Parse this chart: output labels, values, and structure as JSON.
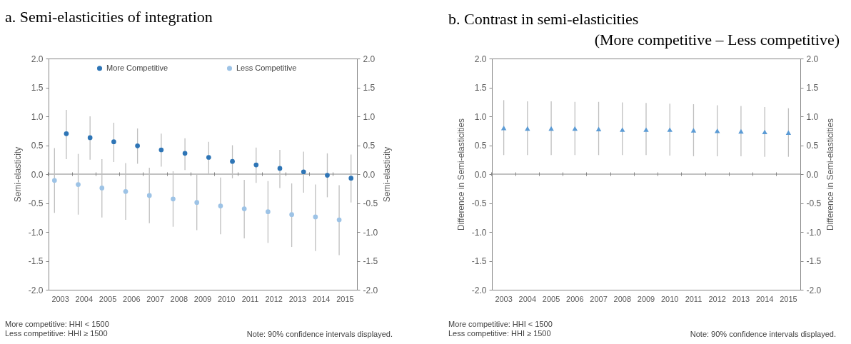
{
  "chart_data": [
    {
      "type": "scatter",
      "title": "a. Semi-elasticities of integration",
      "ylabel": "Semi-elasticity",
      "y2label": "Semi-elasticity",
      "categories": [
        "2003",
        "2004",
        "2005",
        "2006",
        "2007",
        "2008",
        "2009",
        "2010",
        "2011",
        "2012",
        "2013",
        "2014",
        "2015"
      ],
      "series": [
        {
          "name": "More Competitive",
          "color": "#2e75b6",
          "values": [
            0.7,
            0.63,
            0.56,
            0.49,
            0.42,
            0.36,
            0.29,
            0.22,
            0.16,
            0.1,
            0.04,
            -0.02,
            -0.07
          ],
          "errors": [
            [
              0.26,
              1.11
            ],
            [
              0.25,
              1.0
            ],
            [
              0.21,
              0.89
            ],
            [
              0.18,
              0.79
            ],
            [
              0.13,
              0.7
            ],
            [
              0.07,
              0.62
            ],
            [
              0.01,
              0.56
            ],
            [
              -0.07,
              0.5
            ],
            [
              -0.15,
              0.46
            ],
            [
              -0.24,
              0.42
            ],
            [
              -0.32,
              0.39
            ],
            [
              -0.4,
              0.36
            ],
            [
              -0.49,
              0.34
            ]
          ]
        },
        {
          "name": "Less Competitive",
          "color": "#9dc3e6",
          "values": [
            -0.11,
            -0.18,
            -0.24,
            -0.3,
            -0.37,
            -0.43,
            -0.49,
            -0.55,
            -0.6,
            -0.65,
            -0.7,
            -0.74,
            -0.79
          ],
          "errors": [
            [
              -0.67,
              0.45
            ],
            [
              -0.7,
              0.35
            ],
            [
              -0.75,
              0.26
            ],
            [
              -0.79,
              0.19
            ],
            [
              -0.85,
              0.11
            ],
            [
              -0.91,
              0.05
            ],
            [
              -0.97,
              0.0
            ],
            [
              -1.04,
              -0.06
            ],
            [
              -1.11,
              -0.1
            ],
            [
              -1.19,
              -0.12
            ],
            [
              -1.26,
              -0.16
            ],
            [
              -1.33,
              -0.18
            ],
            [
              -1.4,
              -0.19
            ]
          ]
        }
      ],
      "ylim": [
        -2,
        2
      ],
      "yticks": [
        {
          "value": -2,
          "label": "-2.0"
        },
        {
          "value": -1.5,
          "label": "-1.5"
        },
        {
          "value": -1,
          "label": "-1.0"
        },
        {
          "value": -0.5,
          "label": "-0.5"
        },
        {
          "value": 0,
          "label": "0.0"
        },
        {
          "value": 0.5,
          "label": "0.5"
        },
        {
          "value": 1,
          "label": "1.0"
        },
        {
          "value": 1.5,
          "label": "1.5"
        },
        {
          "value": 2,
          "label": "2.0"
        }
      ],
      "y2lim": [
        -2,
        2
      ],
      "y2ticks": [
        {
          "value": -2,
          "label": "-2.0"
        },
        {
          "value": -1.5,
          "label": "-1.5"
        },
        {
          "value": -1,
          "label": "-1.0"
        },
        {
          "value": -0.5,
          "label": "-0.5"
        },
        {
          "value": 0,
          "label": "0.0"
        },
        {
          "value": 0.5,
          "label": "0.5"
        },
        {
          "value": 1,
          "label": "1.0"
        },
        {
          "value": 1.5,
          "label": "1.5"
        },
        {
          "value": 2,
          "label": "2.0"
        }
      ],
      "ref_lines": [
        {
          "axis": "y",
          "value": 0,
          "color": "#868686"
        }
      ],
      "marker": "circle",
      "legend": "top",
      "annotations": [
        "More competitive: HHI < 1500",
        "Less competitive: HHI ≥ 1500",
        "Note: 90% confidence intervals displayed."
      ]
    },
    {
      "type": "scatter",
      "title": "b. Contrast in semi-elasticities",
      "subtitle": "(More competitive – Less competitive)",
      "ylabel": "Difference in Semi-elasticities",
      "y2label": "Difference in Semi-elasticities",
      "categories": [
        "2003",
        "2004",
        "2005",
        "2006",
        "2007",
        "2008",
        "2009",
        "2010",
        "2011",
        "2012",
        "2013",
        "2014",
        "2015"
      ],
      "series": [
        {
          "color": "#5b9bd5",
          "values": [
            0.8,
            0.79,
            0.79,
            0.79,
            0.78,
            0.77,
            0.77,
            0.77,
            0.76,
            0.75,
            0.74,
            0.73,
            0.72
          ],
          "errors": [
            [
              0.33,
              1.28
            ],
            [
              0.33,
              1.26
            ],
            [
              0.33,
              1.26
            ],
            [
              0.33,
              1.25
            ],
            [
              0.33,
              1.25
            ],
            [
              0.33,
              1.24
            ],
            [
              0.33,
              1.23
            ],
            [
              0.32,
              1.22
            ],
            [
              0.31,
              1.21
            ],
            [
              0.31,
              1.19
            ],
            [
              0.31,
              1.18
            ],
            [
              0.3,
              1.16
            ],
            [
              0.3,
              1.14
            ]
          ]
        }
      ],
      "ylim": [
        -2,
        2
      ],
      "yticks": [
        {
          "value": -2,
          "label": "-2.0"
        },
        {
          "value": -1.5,
          "label": "-1.5"
        },
        {
          "value": -1,
          "label": "-1.0"
        },
        {
          "value": -0.5,
          "label": "-0.5"
        },
        {
          "value": 0,
          "label": "0.0"
        },
        {
          "value": 0.5,
          "label": "0.5"
        },
        {
          "value": 1,
          "label": "1.0"
        },
        {
          "value": 1.5,
          "label": "1.5"
        },
        {
          "value": 2,
          "label": "2.0"
        }
      ],
      "y2lim": [
        -2,
        2
      ],
      "y2ticks": [
        {
          "value": -2,
          "label": "-2.0"
        },
        {
          "value": -1.5,
          "label": "-1.5"
        },
        {
          "value": -1,
          "label": "-1.0"
        },
        {
          "value": -0.5,
          "label": "-0.5"
        },
        {
          "value": 0,
          "label": "0.0"
        },
        {
          "value": 0.5,
          "label": "0.5"
        },
        {
          "value": 1,
          "label": "1.0"
        },
        {
          "value": 1.5,
          "label": "1.5"
        },
        {
          "value": 2,
          "label": "2.0"
        }
      ],
      "ref_lines": [
        {
          "axis": "y",
          "value": 0,
          "color": "#868686"
        }
      ],
      "marker": "triangle",
      "annotations": [
        "More competitive: HHI < 1500",
        "Less competitive: HHI ≥ 1500",
        "Note: 90% confidence intervals displayed."
      ]
    }
  ]
}
